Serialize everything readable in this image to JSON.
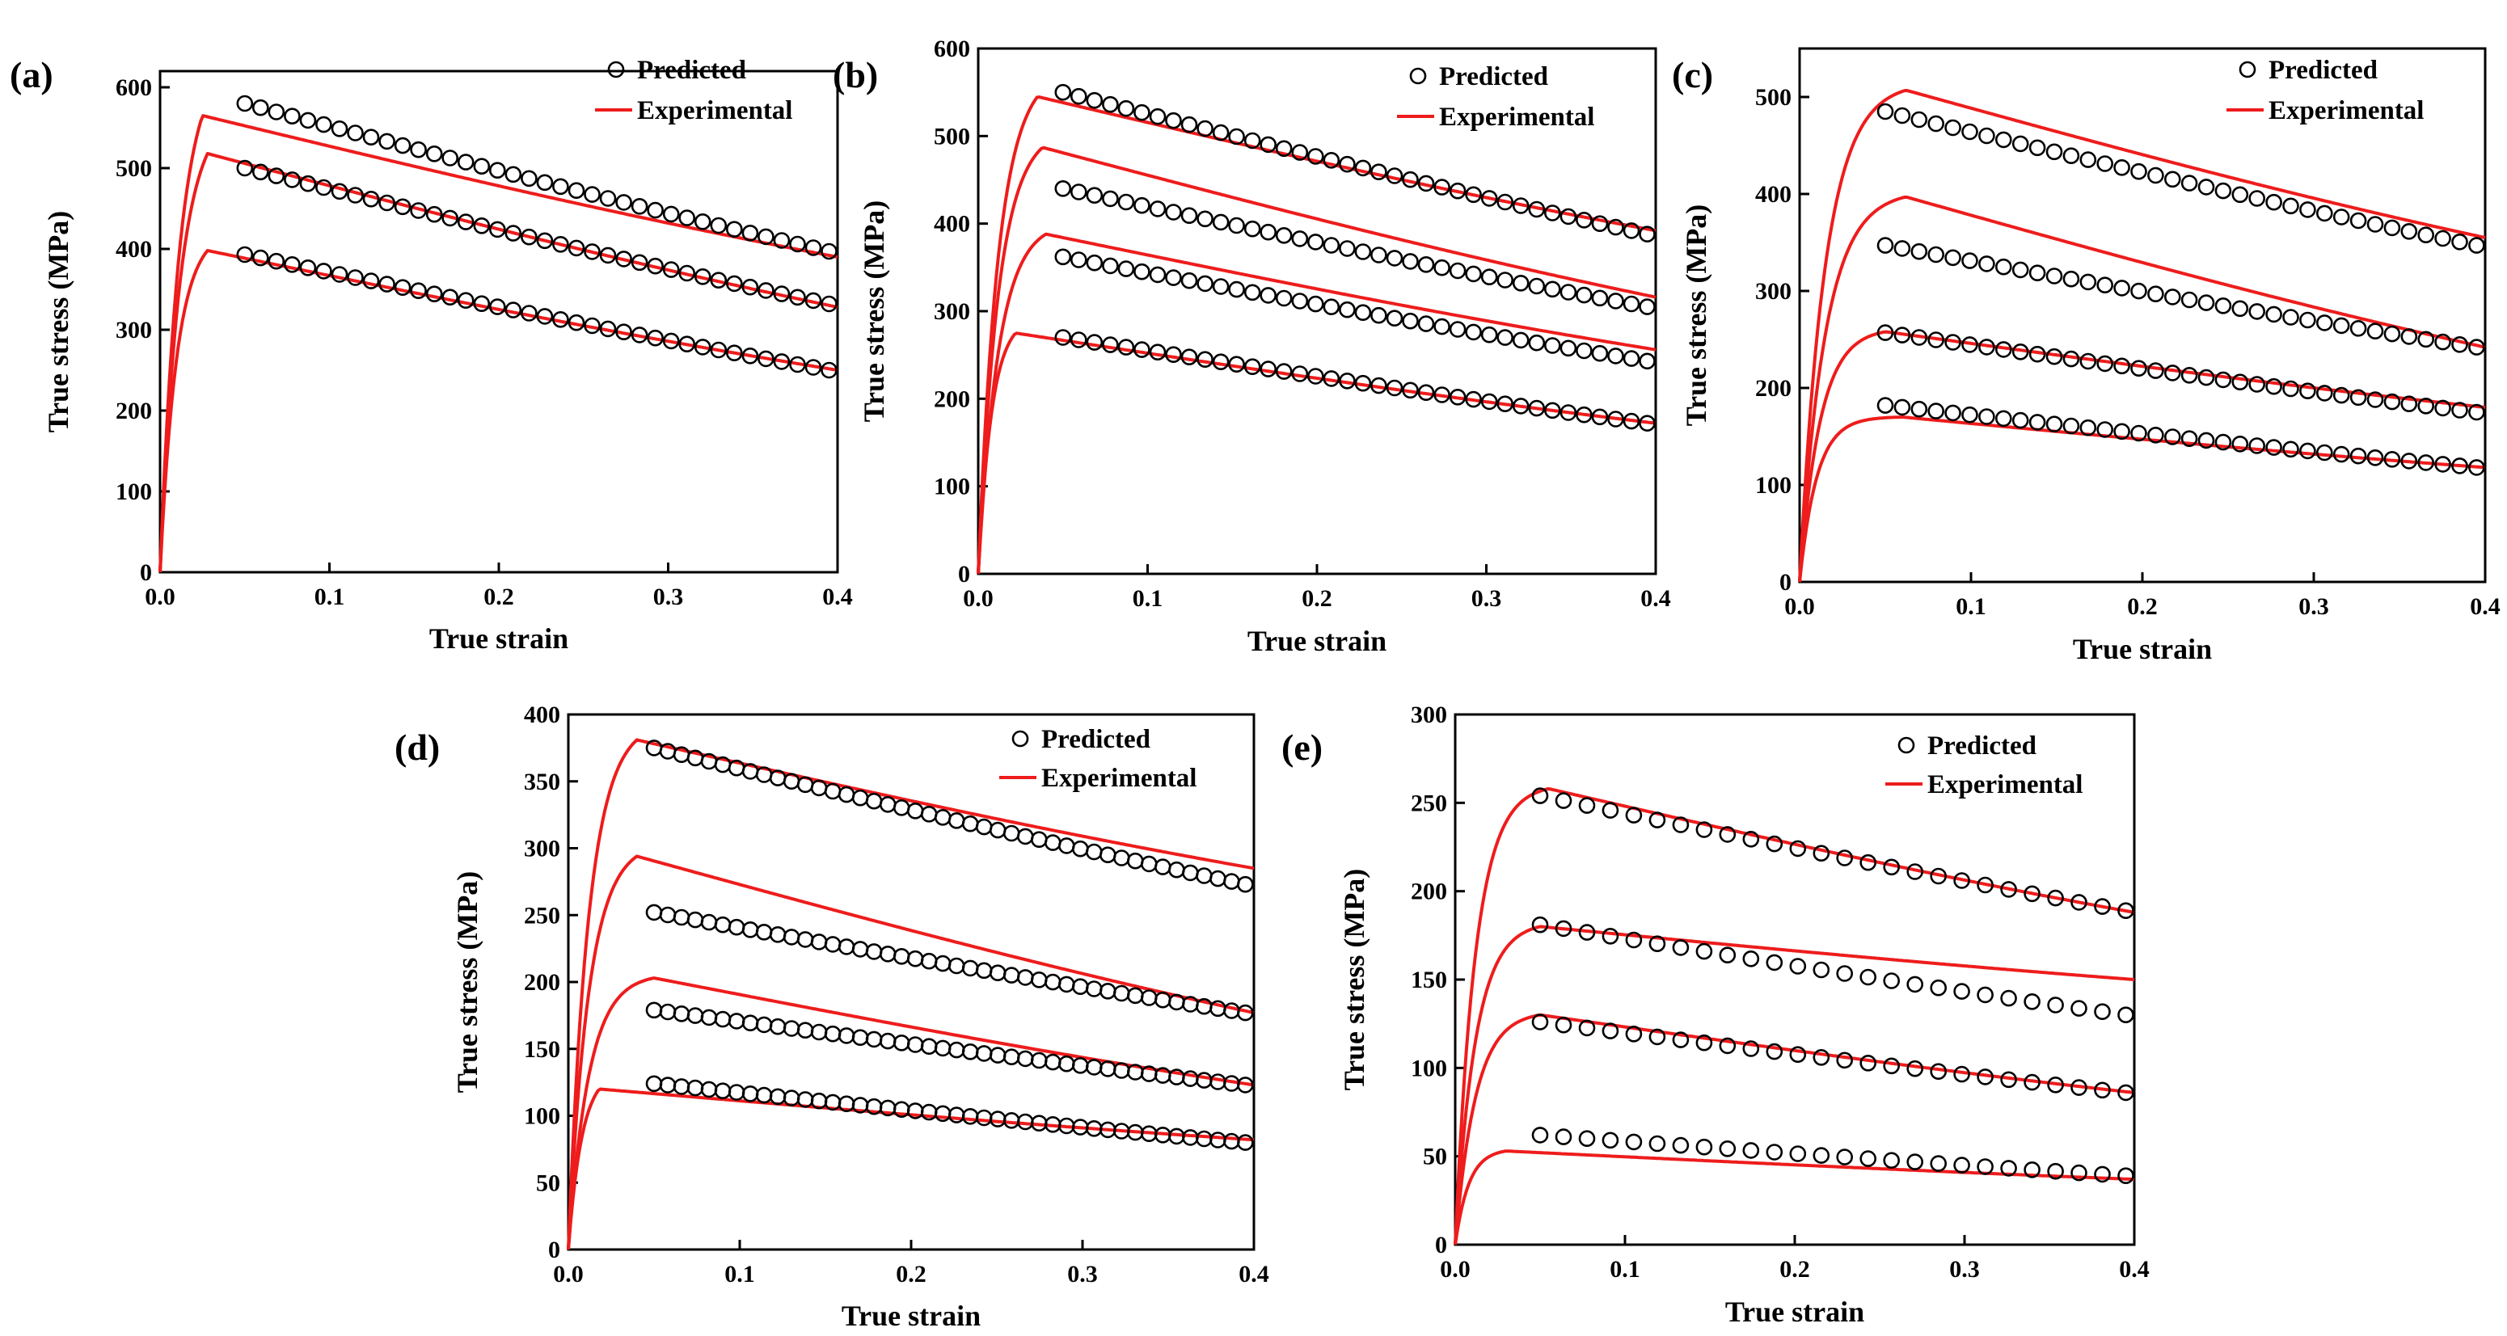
{
  "chart_data": [
    {
      "type": "line",
      "panel_label": "(a)",
      "xlabel": "True strain",
      "ylabel": "True stress (MPa)",
      "xlim": [
        0,
        0.4
      ],
      "ylim": [
        0,
        620
      ],
      "xticks": [
        0.0,
        0.1,
        0.2,
        0.3,
        0.4
      ],
      "xtick_labels": [
        "0.0",
        "0.1",
        "0.2",
        "0.3",
        "0.4"
      ],
      "yticks": [
        0,
        100,
        200,
        300,
        400,
        500,
        600
      ],
      "ytick_labels": [
        "0",
        "100",
        "200",
        "300",
        "400",
        "500",
        "600"
      ],
      "legend": {
        "position": "top-right",
        "entries": [
          "Predicted",
          "Experimental"
        ]
      },
      "experimental": [
        {
          "rise": 0.012,
          "peak_x": 0.025,
          "peak": 565,
          "end": 390
        },
        {
          "rise": 0.012,
          "peak_x": 0.028,
          "peak": 518,
          "end": 328
        },
        {
          "rise": 0.01,
          "peak_x": 0.028,
          "peak": 398,
          "end": 250
        }
      ],
      "predicted": [
        {
          "x_start": 0.05,
          "x_end": 0.395,
          "start": 580,
          "end": 397,
          "count": 38
        },
        {
          "x_start": 0.05,
          "x_end": 0.395,
          "start": 500,
          "end": 332,
          "count": 38
        },
        {
          "x_start": 0.05,
          "x_end": 0.395,
          "start": 393,
          "end": 250,
          "count": 38
        }
      ]
    },
    {
      "type": "line",
      "panel_label": "(b)",
      "xlabel": "True strain",
      "ylabel": "True stress (MPa)",
      "xlim": [
        0,
        0.4
      ],
      "ylim": [
        0,
        600
      ],
      "xticks": [
        0.0,
        0.1,
        0.2,
        0.3,
        0.4
      ],
      "xtick_labels": [
        "0.0",
        "0.1",
        "0.2",
        "0.3",
        "0.4"
      ],
      "yticks": [
        0,
        100,
        200,
        300,
        400,
        500,
        600
      ],
      "ytick_labels": [
        "0",
        "100",
        "200",
        "300",
        "400",
        "500",
        "600"
      ],
      "legend": {
        "position": "top-right",
        "entries": [
          "Predicted",
          "Experimental"
        ]
      },
      "experimental": [
        {
          "rise": 0.012,
          "peak_x": 0.035,
          "peak": 545,
          "end": 392
        },
        {
          "rise": 0.012,
          "peak_x": 0.038,
          "peak": 487,
          "end": 316
        },
        {
          "rise": 0.012,
          "peak_x": 0.04,
          "peak": 388,
          "end": 256
        },
        {
          "rise": 0.008,
          "peak_x": 0.022,
          "peak": 275,
          "end": 172
        }
      ],
      "predicted": [
        {
          "x_start": 0.05,
          "x_end": 0.395,
          "start": 550,
          "end": 388,
          "count": 38
        },
        {
          "x_start": 0.05,
          "x_end": 0.395,
          "start": 440,
          "end": 305,
          "count": 38
        },
        {
          "x_start": 0.05,
          "x_end": 0.395,
          "start": 362,
          "end": 243,
          "count": 38
        },
        {
          "x_start": 0.05,
          "x_end": 0.395,
          "start": 270,
          "end": 172,
          "count": 38
        }
      ]
    },
    {
      "type": "line",
      "panel_label": "(c)",
      "xlabel": "True strain",
      "ylabel": "True stress (MPa)",
      "xlim": [
        0,
        0.4
      ],
      "ylim": [
        0,
        550
      ],
      "xticks": [
        0.0,
        0.1,
        0.2,
        0.3,
        0.4
      ],
      "xtick_labels": [
        "0.0",
        "0.1",
        "0.2",
        "0.3",
        "0.4"
      ],
      "yticks": [
        0,
        100,
        200,
        300,
        400,
        500
      ],
      "ytick_labels": [
        "0",
        "100",
        "200",
        "300",
        "400",
        "500"
      ],
      "legend": {
        "position": "top-right",
        "entries": [
          "Predicted",
          "Experimental"
        ]
      },
      "experimental": [
        {
          "rise": 0.015,
          "peak_x": 0.062,
          "peak": 507,
          "end": 355
        },
        {
          "rise": 0.015,
          "peak_x": 0.062,
          "peak": 397,
          "end": 242
        },
        {
          "rise": 0.012,
          "peak_x": 0.05,
          "peak": 258,
          "end": 180
        },
        {
          "rise": 0.01,
          "peak_x": 0.06,
          "peak": 170,
          "end": 118
        }
      ],
      "predicted": [
        {
          "x_start": 0.05,
          "x_end": 0.395,
          "start": 485,
          "end": 347,
          "count": 36
        },
        {
          "x_start": 0.05,
          "x_end": 0.395,
          "start": 347,
          "end": 242,
          "count": 36
        },
        {
          "x_start": 0.05,
          "x_end": 0.395,
          "start": 257,
          "end": 175,
          "count": 36
        },
        {
          "x_start": 0.05,
          "x_end": 0.395,
          "start": 182,
          "end": 118,
          "count": 36
        }
      ]
    },
    {
      "type": "line",
      "panel_label": "(d)",
      "xlabel": "True strain",
      "ylabel": "True stress (MPa)",
      "xlim": [
        0,
        0.4
      ],
      "ylim": [
        0,
        400
      ],
      "xticks": [
        0.0,
        0.1,
        0.2,
        0.3,
        0.4
      ],
      "xtick_labels": [
        "0.0",
        "0.1",
        "0.2",
        "0.3",
        "0.4"
      ],
      "yticks": [
        0,
        50,
        100,
        150,
        200,
        250,
        300,
        350,
        400
      ],
      "ytick_labels": [
        "0",
        "50",
        "100",
        "150",
        "200",
        "250",
        "300",
        "350",
        "400"
      ],
      "legend": {
        "position": "top-right",
        "entries": [
          "Predicted",
          "Experimental"
        ]
      },
      "experimental": [
        {
          "rise": 0.012,
          "peak_x": 0.04,
          "peak": 381,
          "end": 285
        },
        {
          "rise": 0.012,
          "peak_x": 0.04,
          "peak": 294,
          "end": 177
        },
        {
          "rise": 0.012,
          "peak_x": 0.05,
          "peak": 203,
          "end": 123
        },
        {
          "rise": 0.008,
          "peak_x": 0.018,
          "peak": 120,
          "end": 82
        }
      ],
      "predicted": [
        {
          "x_start": 0.05,
          "x_end": 0.395,
          "start": 375,
          "end": 273,
          "count": 44
        },
        {
          "x_start": 0.05,
          "x_end": 0.395,
          "start": 252,
          "end": 177,
          "count": 44
        },
        {
          "x_start": 0.05,
          "x_end": 0.395,
          "start": 179,
          "end": 123,
          "count": 44
        },
        {
          "x_start": 0.05,
          "x_end": 0.395,
          "start": 124,
          "end": 80,
          "count": 44
        }
      ]
    },
    {
      "type": "line",
      "panel_label": "(e)",
      "xlabel": "True strain",
      "ylabel": "True stress (MPa)",
      "xlim": [
        0,
        0.4
      ],
      "ylim": [
        0,
        300
      ],
      "xticks": [
        0.0,
        0.1,
        0.2,
        0.3,
        0.4
      ],
      "xtick_labels": [
        "0.0",
        "0.1",
        "0.2",
        "0.3",
        "0.4"
      ],
      "yticks": [
        0,
        50,
        100,
        150,
        200,
        250,
        300
      ],
      "ytick_labels": [
        "0",
        "50",
        "100",
        "150",
        "200",
        "250",
        "300"
      ],
      "legend": {
        "position": "top-right",
        "entries": [
          "Predicted",
          "Experimental"
        ]
      },
      "experimental": [
        {
          "rise": 0.012,
          "peak_x": 0.055,
          "peak": 258,
          "end": 188
        },
        {
          "rise": 0.012,
          "peak_x": 0.05,
          "peak": 180,
          "end": 150
        },
        {
          "rise": 0.012,
          "peak_x": 0.05,
          "peak": 130,
          "end": 86
        },
        {
          "rise": 0.008,
          "peak_x": 0.03,
          "peak": 53,
          "end": 37
        }
      ],
      "predicted": [
        {
          "x_start": 0.05,
          "x_end": 0.395,
          "start": 254,
          "end": 189,
          "count": 26
        },
        {
          "x_start": 0.05,
          "x_end": 0.395,
          "start": 181,
          "end": 130,
          "count": 26
        },
        {
          "x_start": 0.05,
          "x_end": 0.395,
          "start": 126,
          "end": 86,
          "count": 26
        },
        {
          "x_start": 0.05,
          "x_end": 0.395,
          "start": 62,
          "end": 39,
          "count": 26
        }
      ]
    }
  ]
}
